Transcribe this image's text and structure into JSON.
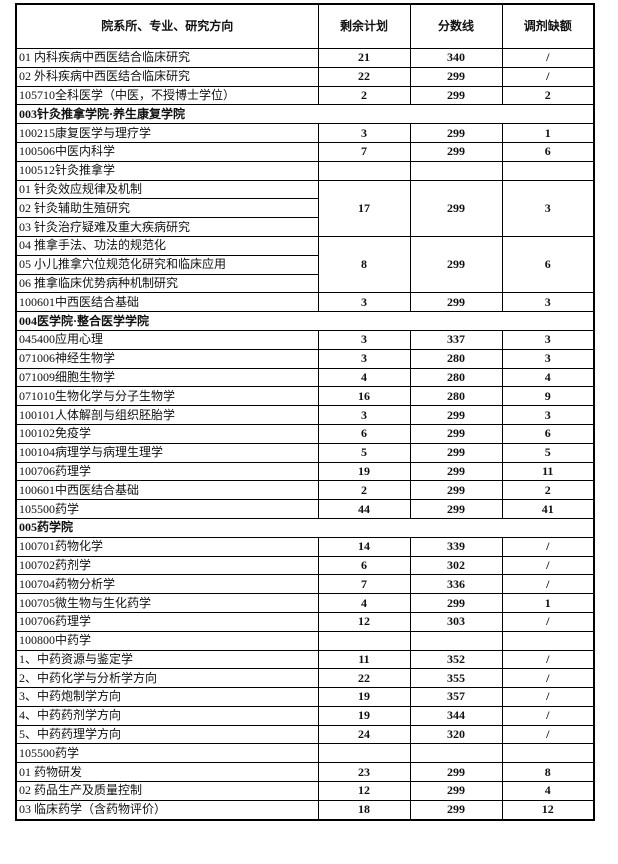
{
  "header": {
    "col1": "院系所、专业、研究方向",
    "col2": "剩余计划",
    "col3": "分数线",
    "col4": "调剂缺额"
  },
  "rows": [
    {
      "label": "01 内科疾病中西医结合临床研究",
      "plan": "21",
      "score": "340",
      "quota": "/"
    },
    {
      "label": "02 外科疾病中西医结合临床研究",
      "plan": "22",
      "score": "299",
      "quota": "/"
    },
    {
      "label": "105710全科医学（中医，不授博士学位）",
      "plan": "2",
      "score": "299",
      "quota": "2"
    },
    {
      "section": "003针灸推拿学院·养生康复学院"
    },
    {
      "label": "100215康复医学与理疗学",
      "plan": "3",
      "score": "299",
      "quota": "1"
    },
    {
      "label": "100506中医内科学",
      "plan": "7",
      "score": "299",
      "quota": "6"
    },
    {
      "label": "100512针灸推拿学",
      "plan": "",
      "score": "",
      "quota": ""
    },
    {
      "labels": [
        "01 针灸效应规律及机制",
        "02 针灸辅助生殖研究",
        "03 针灸治疗疑难及重大疾病研究"
      ],
      "plan": "17",
      "score": "299",
      "quota": "3"
    },
    {
      "labels": [
        "04 推拿手法、功法的规范化",
        "05 小儿推拿穴位规范化研究和临床应用",
        "06 推拿临床优势病种机制研究"
      ],
      "plan": "8",
      "score": "299",
      "quota": "6"
    },
    {
      "label": "100601中西医结合基础",
      "plan": "3",
      "score": "299",
      "quota": "3"
    },
    {
      "section": "004医学院·整合医学学院"
    },
    {
      "label": "045400应用心理",
      "plan": "3",
      "score": "337",
      "quota": "3"
    },
    {
      "label": "071006神经生物学",
      "plan": "3",
      "score": "280",
      "quota": "3"
    },
    {
      "label": "071009细胞生物学",
      "plan": "4",
      "score": "280",
      "quota": "4"
    },
    {
      "label": "071010生物化学与分子生物学",
      "plan": "16",
      "score": "280",
      "quota": "9"
    },
    {
      "label": "100101人体解剖与组织胚胎学",
      "plan": "3",
      "score": "299",
      "quota": "3"
    },
    {
      "label": "100102免疫学",
      "plan": "6",
      "score": "299",
      "quota": "6"
    },
    {
      "label": "100104病理学与病理生理学",
      "plan": "5",
      "score": "299",
      "quota": "5"
    },
    {
      "label": "100706药理学",
      "plan": "19",
      "score": "299",
      "quota": "11"
    },
    {
      "label": "100601中西医结合基础",
      "plan": "2",
      "score": "299",
      "quota": "2"
    },
    {
      "label": "105500药学",
      "plan": "44",
      "score": "299",
      "quota": "41"
    },
    {
      "section": "005药学院"
    },
    {
      "label": "100701药物化学",
      "plan": "14",
      "score": "339",
      "quota": "/"
    },
    {
      "label": "100702药剂学",
      "plan": "6",
      "score": "302",
      "quota": "/"
    },
    {
      "label": "100704药物分析学",
      "plan": "7",
      "score": "336",
      "quota": "/"
    },
    {
      "label": "100705微生物与生化药学",
      "plan": "4",
      "score": "299",
      "quota": "1"
    },
    {
      "label": "100706药理学",
      "plan": "12",
      "score": "303",
      "quota": "/"
    },
    {
      "label": "100800中药学",
      "plan": "",
      "score": "",
      "quota": ""
    },
    {
      "label": "1、中药资源与鉴定学",
      "plan": "11",
      "score": "352",
      "quota": "/"
    },
    {
      "label": "2、中药化学与分析学方向",
      "plan": "22",
      "score": "355",
      "quota": "/"
    },
    {
      "label": "3、中药炮制学方向",
      "plan": "19",
      "score": "357",
      "quota": "/"
    },
    {
      "label": "4、中药药剂学方向",
      "plan": "19",
      "score": "344",
      "quota": "/"
    },
    {
      "label": "5、中药药理学方向",
      "plan": "24",
      "score": "320",
      "quota": "/"
    },
    {
      "label": "105500药学",
      "plan": "",
      "score": "",
      "quota": ""
    },
    {
      "label": "01 药物研发",
      "plan": "23",
      "score": "299",
      "quota": "8"
    },
    {
      "label": "02 药品生产及质量控制",
      "plan": "12",
      "score": "299",
      "quota": "4"
    },
    {
      "label": "03 临床药学（含药物评价）",
      "plan": "18",
      "score": "299",
      "quota": "12"
    }
  ]
}
